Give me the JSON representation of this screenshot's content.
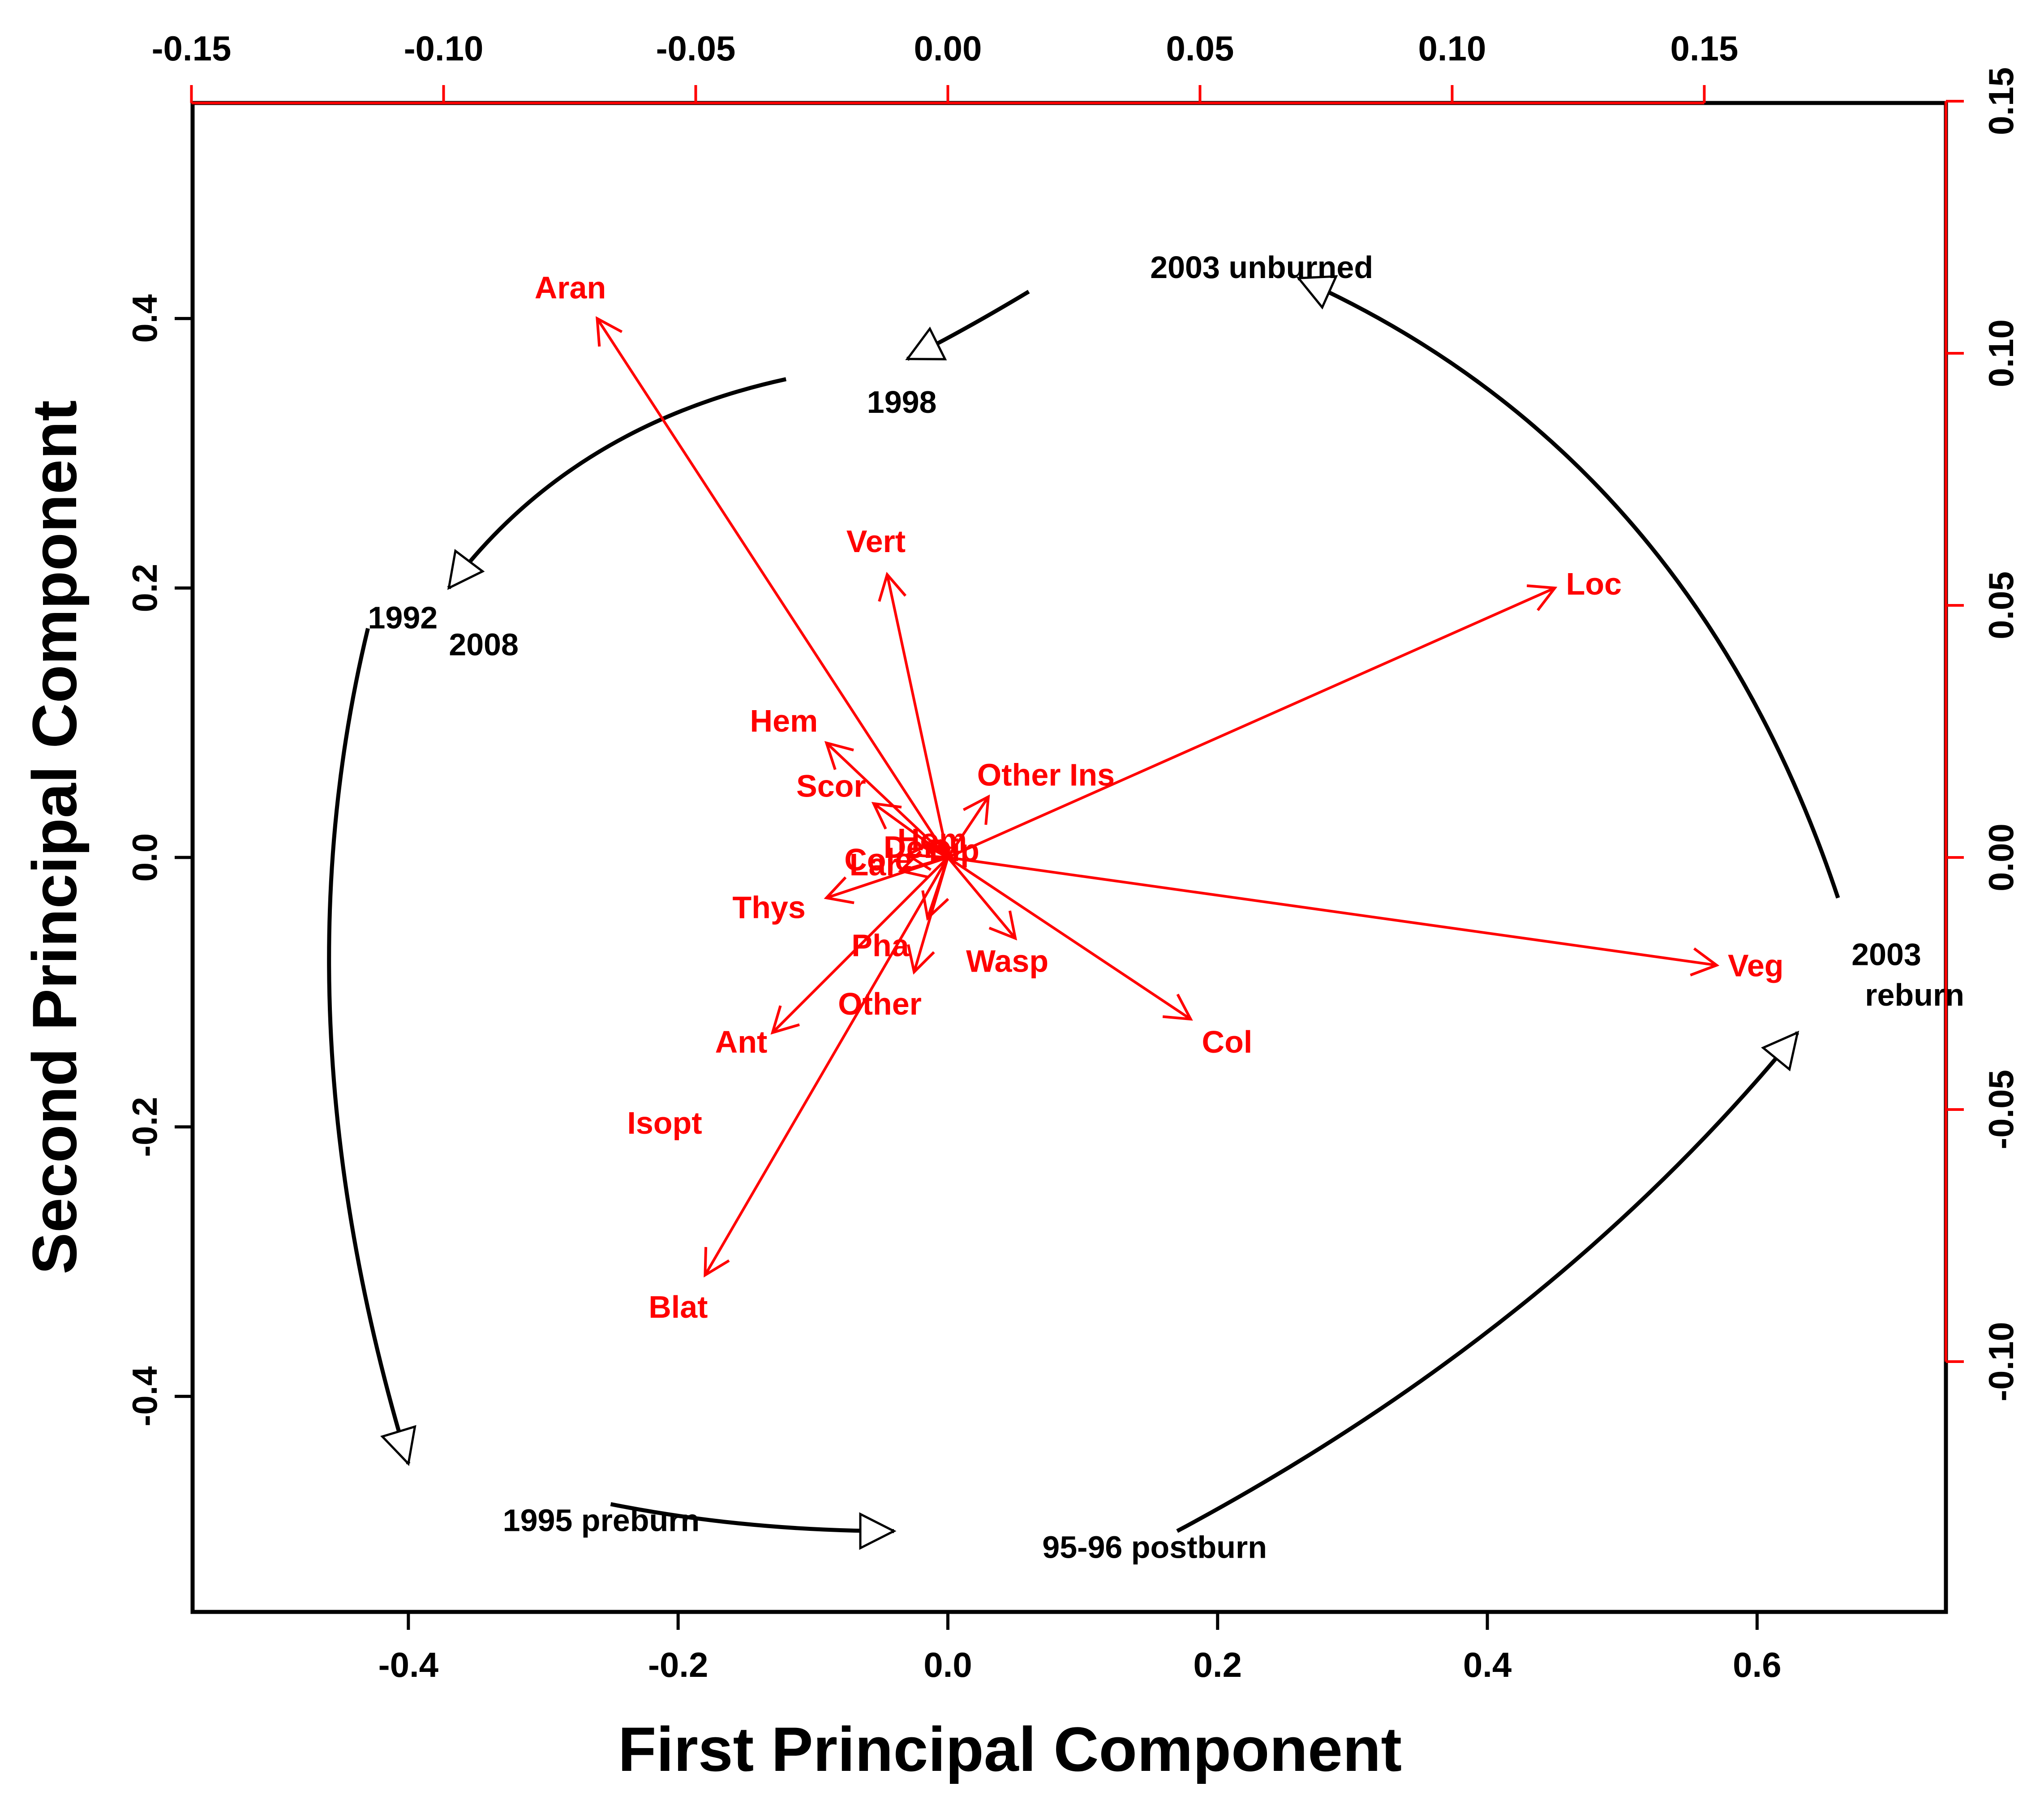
{
  "chart_data": {
    "type": "scatter",
    "subtype": "PCA biplot",
    "title": "",
    "xlabel": "First Principal Component",
    "ylabel": "Second Principal Component",
    "xlim": [
      -0.56,
      0.74
    ],
    "ylim": [
      -0.56,
      0.56
    ],
    "xticks": [
      -0.4,
      -0.2,
      0.0,
      0.2,
      0.4,
      0.6
    ],
    "xtick_labels": [
      "-0.4",
      "-0.2",
      "0.0",
      "0.2",
      "0.4",
      "0.6"
    ],
    "yticks": [
      -0.4,
      -0.2,
      0.0,
      0.2,
      0.4
    ],
    "ytick_labels": [
      "-0.4",
      "-0.2",
      "0.0",
      "0.2",
      "0.4"
    ],
    "secondary_axes": {
      "color": "#ff0000",
      "top_ticks": [
        -0.15,
        -0.1,
        -0.05,
        0.0,
        0.05,
        0.1,
        0.15
      ],
      "top_tick_labels": [
        "-0.15",
        "-0.10",
        "-0.05",
        "0.00",
        "0.05",
        "0.10",
        "0.15"
      ],
      "right_ticks": [
        -0.1,
        -0.05,
        0.0,
        0.05,
        0.1,
        0.15
      ],
      "right_tick_labels": [
        "-0.10",
        "-0.05",
        "0.00",
        "0.05",
        "0.10",
        "0.15"
      ]
    },
    "grid": false,
    "legend": "none",
    "observations": [
      {
        "label": "1992",
        "x": -0.43,
        "y": 0.17
      },
      {
        "label": "2008",
        "x": -0.37,
        "y": 0.15
      },
      {
        "label": "1998",
        "x": -0.06,
        "y": 0.33
      },
      {
        "label": "2003 unburned",
        "x": 0.15,
        "y": 0.43
      },
      {
        "label": "2003",
        "x": 0.67,
        "y": -0.08
      },
      {
        "label": "reburn",
        "x": 0.68,
        "y": -0.11
      },
      {
        "label": "1995 preburn",
        "x": -0.33,
        "y": -0.5
      },
      {
        "label": "95-96 postburn",
        "x": 0.07,
        "y": -0.52
      }
    ],
    "trajectory": {
      "color": "#000000",
      "segments": [
        {
          "from": "1992/2008",
          "to": "1995 preburn",
          "points": [
            [
              -0.43,
              0.17
            ],
            [
              -0.5,
              -0.12
            ],
            [
              -0.4,
              -0.45
            ]
          ]
        },
        {
          "from": "1995 preburn",
          "to": "95-96 postburn",
          "points": [
            [
              -0.25,
              -0.48
            ],
            [
              -0.15,
              -0.5
            ],
            [
              -0.04,
              -0.5
            ]
          ]
        },
        {
          "from": "95-96 postburn",
          "to": "2003 reburn",
          "points": [
            [
              0.17,
              -0.5
            ],
            [
              0.45,
              -0.35
            ],
            [
              0.63,
              -0.13
            ]
          ]
        },
        {
          "from": "2003 reburn",
          "to": "2003 unburned",
          "points": [
            [
              0.66,
              -0.03
            ],
            [
              0.55,
              0.3
            ],
            [
              0.26,
              0.43
            ]
          ]
        },
        {
          "from": "2003 unburned",
          "to": "1998",
          "points": [
            [
              0.06,
              0.42
            ],
            [
              0.01,
              0.39
            ],
            [
              -0.03,
              0.37
            ]
          ]
        },
        {
          "from": "1998",
          "to": "1992/2008",
          "points": [
            [
              -0.12,
              0.355
            ],
            [
              -0.28,
              0.32
            ],
            [
              -0.37,
              0.2
            ]
          ]
        }
      ]
    },
    "variables": [
      {
        "label": "Aran",
        "x": -0.26,
        "y": 0.4
      },
      {
        "label": "Vert",
        "x": -0.045,
        "y": 0.21
      },
      {
        "label": "Loc",
        "x": 0.45,
        "y": 0.2
      },
      {
        "label": "Hem",
        "x": -0.09,
        "y": 0.085
      },
      {
        "label": "Scor",
        "x": -0.055,
        "y": 0.04
      },
      {
        "label": "Other Ins",
        "x": 0.03,
        "y": 0.045
      },
      {
        "label": "Veg",
        "x": 0.57,
        "y": -0.08
      },
      {
        "label": "Wasp",
        "x": 0.05,
        "y": -0.06
      },
      {
        "label": "Col",
        "x": 0.18,
        "y": -0.12
      },
      {
        "label": "Other",
        "x": -0.025,
        "y": -0.085
      },
      {
        "label": "Pha",
        "x": -0.015,
        "y": -0.045
      },
      {
        "label": "Thys",
        "x": -0.09,
        "y": -0.03
      },
      {
        "label": "Lar",
        "x": -0.035,
        "y": -0.01
      },
      {
        "label": "Cole",
        "x": -0.03,
        "y": 0.002
      },
      {
        "label": "Der",
        "x": -0.015,
        "y": 0.008
      },
      {
        "label": "Hom",
        "x": -0.005,
        "y": 0.012
      },
      {
        "label": "Dip",
        "x": 0.008,
        "y": 0.004
      },
      {
        "label": "Ant",
        "x": -0.13,
        "y": -0.13
      },
      {
        "label": "Blat",
        "x": -0.18,
        "y": -0.31
      }
    ],
    "extra_labels": [
      {
        "label": "Isopt",
        "x": -0.21,
        "y": -0.205
      }
    ]
  }
}
